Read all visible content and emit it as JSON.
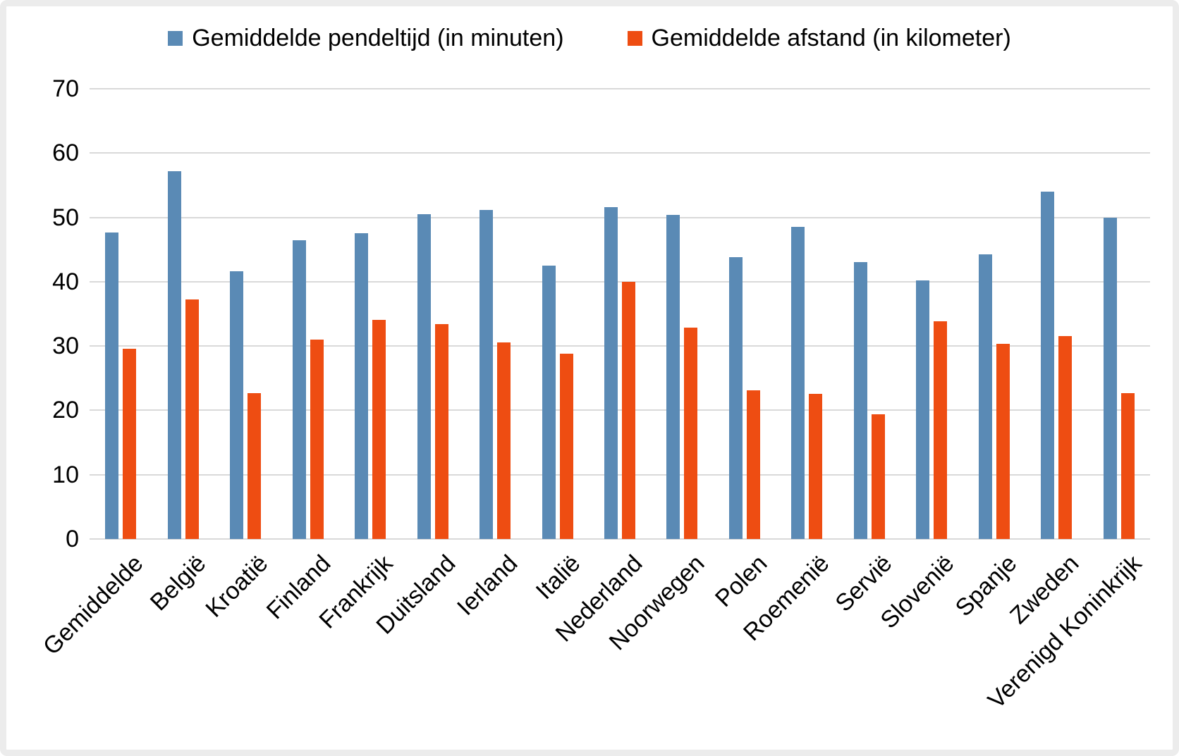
{
  "frame": {
    "background": "#ffffff",
    "border_color": "#ececec"
  },
  "legend": {
    "items": [
      {
        "label": "Gemiddelde pendeltijd (in minuten)",
        "swatch": "blue-square",
        "color": "#5a8ab5"
      },
      {
        "label": "Gemiddelde afstand (in kilometer)",
        "swatch": "orange-square",
        "color": "#ee4d12"
      }
    ]
  },
  "chart_data": {
    "type": "bar",
    "title": "",
    "xlabel": "",
    "ylabel": "",
    "categories": [
      "Gemiddelde",
      "België",
      "Kroatië",
      "Finland",
      "Frankrijk",
      "Duitsland",
      "Ierland",
      "Italië",
      "Nederland",
      "Noorwegen",
      "Polen",
      "Roemenië",
      "Servië",
      "Slovenië",
      "Spanje",
      "Zweden",
      "Verenigd Koninkrijk"
    ],
    "series": [
      {
        "name": "Gemiddelde pendeltijd (in minuten)",
        "color": "#5a8ab5",
        "values": [
          47.7,
          57.2,
          41.6,
          46.4,
          47.5,
          50.5,
          51.2,
          42.5,
          51.6,
          50.4,
          43.8,
          48.5,
          43.0,
          40.2,
          44.3,
          54.0,
          50.0
        ]
      },
      {
        "name": "Gemiddelde afstand (in kilometer)",
        "color": "#ee4d12",
        "values": [
          29.6,
          37.3,
          22.7,
          31.0,
          34.1,
          33.4,
          30.6,
          28.8,
          40.0,
          32.9,
          23.1,
          22.6,
          19.4,
          33.9,
          30.3,
          31.5,
          22.7
        ]
      }
    ],
    "ylim": [
      0,
      70
    ],
    "yticks": [
      0,
      10,
      20,
      30,
      40,
      50,
      60,
      70
    ],
    "grid": "horizontal-on",
    "gridline_color": "#d9d9d9",
    "legend_position": "top",
    "x_label_rotation": -45
  }
}
